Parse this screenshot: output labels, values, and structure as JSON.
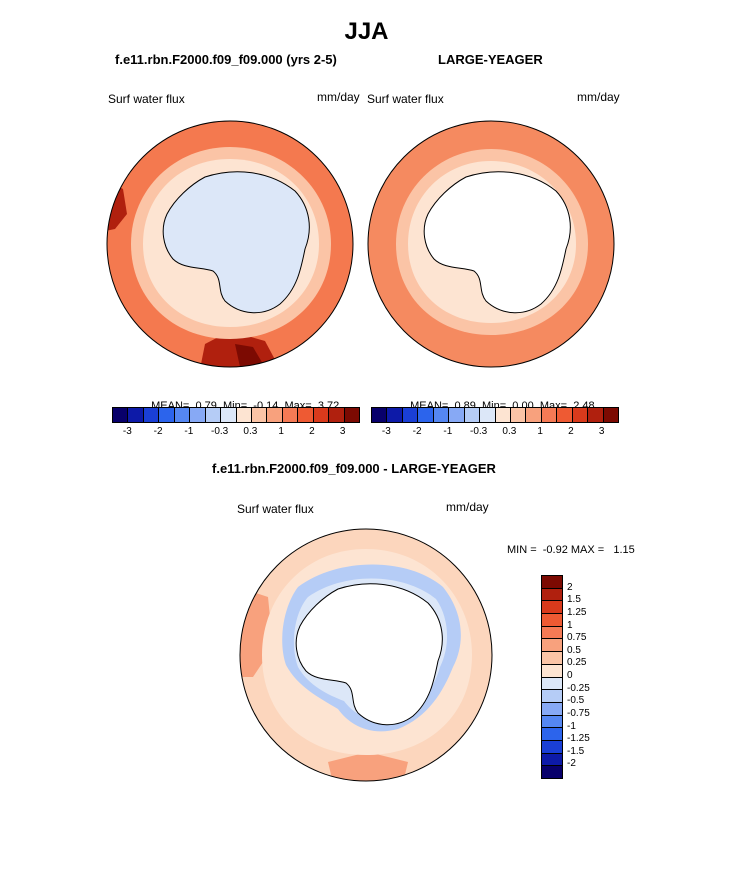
{
  "title": "JJA",
  "panels": [
    {
      "case": "f.e11.rbn.F2000.f09_f09.000 (yrs 2-5)",
      "variable": "Surf water flux",
      "units": "mm/day",
      "stats": {
        "mean_label": "MEAN=",
        "mean": "0.79",
        "min_label": "Min=",
        "min": "-0.14",
        "max_label": "Max=",
        "max": "3.72"
      }
    },
    {
      "case": "LARGE-YEAGER",
      "variable": "Surf water flux",
      "units": "mm/day",
      "stats": {
        "mean_label": "MEAN=",
        "mean": "0.89",
        "min_label": "Min=",
        "min": "0.00",
        "max_label": "Max=",
        "max": "2.48"
      }
    }
  ],
  "diff": {
    "title": "f.e11.rbn.F2000.f09_f09.000 - LARGE-YEAGER",
    "variable": "Surf water flux",
    "units": "mm/day",
    "range_text": "MIN =  -0.92 MAX =   1.15"
  },
  "colorbar_horizontal": {
    "colors": [
      "#08006b",
      "#0d1aa8",
      "#1a3fd6",
      "#2c64ec",
      "#5587f2",
      "#87a9f5",
      "#b5ccf6",
      "#dce7f8",
      "#fde4d2",
      "#fbc4a6",
      "#f8a17d",
      "#f57a55",
      "#ee5a33",
      "#d93a1c",
      "#b0200e",
      "#7c0a02"
    ],
    "tick_labels": [
      "-3",
      "-2",
      "-1",
      "-0.3",
      "0.3",
      "1",
      "2",
      "3"
    ]
  },
  "colorbar_vertical": {
    "colors": [
      "#7c0a02",
      "#b0200e",
      "#d93a1c",
      "#ee5a33",
      "#f57a55",
      "#f8a17d",
      "#fbc4a6",
      "#fde4d2",
      "#dce7f8",
      "#b5ccf6",
      "#87a9f5",
      "#5587f2",
      "#2c64ec",
      "#1a3fd6",
      "#0d1aa8",
      "#08006b"
    ],
    "tick_labels": [
      "2",
      "1.5",
      "1.25",
      "1",
      "0.75",
      "0.5",
      "0.25",
      "0",
      "-0.25",
      "-0.5",
      "-0.75",
      "-1",
      "-1.25",
      "-1.5",
      "-2"
    ]
  },
  "map_colors": {
    "ocean_model": "#f4794f",
    "ocean_obs": "#f58a60",
    "diff_background": "#fcd6bd",
    "ice_fill": "#dce7f8",
    "land": "#ffffff",
    "ring_light": "#fde4d2",
    "ring_mid": "#fbc4a6",
    "hot": "#b0200e",
    "hotter": "#7c0a02",
    "diff_blue": "#b5ccf6",
    "diff_warm": "#f8a17d"
  }
}
